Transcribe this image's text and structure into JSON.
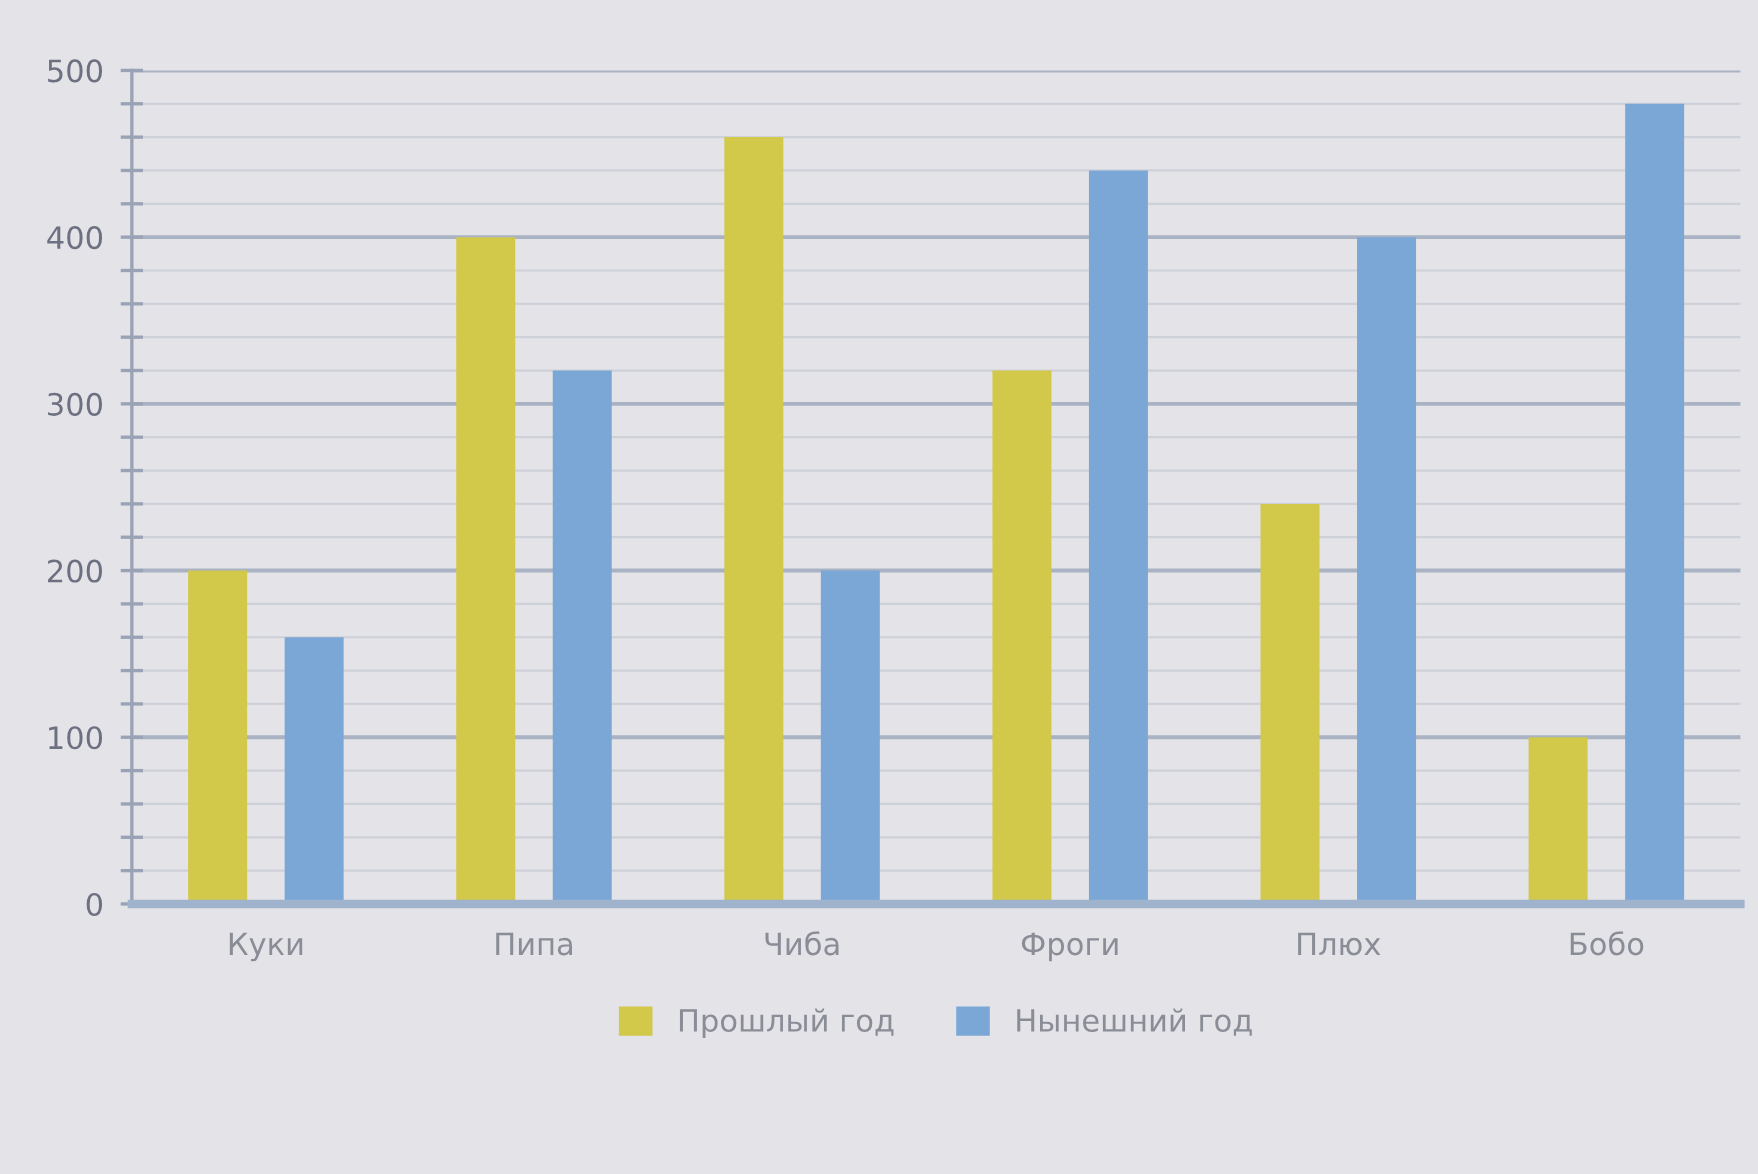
{
  "chart_data": {
    "type": "bar",
    "categories": [
      "Куки",
      "Пипа",
      "Чиба",
      "Фроги",
      "Плюх",
      "Бобо"
    ],
    "series": [
      {
        "name": "Прошлый год",
        "color": "#d2c84a",
        "values": [
          200,
          400,
          460,
          320,
          240,
          100
        ]
      },
      {
        "name": "Нынешний год",
        "color": "#7ba7d6",
        "values": [
          160,
          320,
          200,
          440,
          400,
          480
        ]
      }
    ],
    "ylim": [
      0,
      500
    ],
    "yticks": [
      0,
      {
        "value": 20,
        "label": null
      },
      {
        "value": 40,
        "label": null
      },
      {
        "value": 60,
        "label": null
      },
      {
        "value": 80,
        "label": null
      },
      100,
      {
        "value": 120,
        "label": null
      },
      {
        "value": 140,
        "label": null
      },
      {
        "value": 160,
        "label": null
      },
      {
        "value": 180,
        "label": null
      },
      200,
      {
        "value": 220,
        "label": null
      },
      {
        "value": 240,
        "label": null
      },
      {
        "value": 260,
        "label": null
      },
      {
        "value": 280,
        "label": null
      },
      300,
      {
        "value": 320,
        "label": null
      },
      {
        "value": 340,
        "label": null
      },
      {
        "value": 360,
        "label": null
      },
      {
        "value": 380,
        "label": null
      },
      400,
      {
        "value": 420,
        "label": null
      },
      {
        "value": 440,
        "label": null
      },
      {
        "value": 460,
        "label": null
      },
      {
        "value": 480,
        "label": null
      },
      500
    ],
    "grid": "y",
    "legend": "bottom"
  }
}
